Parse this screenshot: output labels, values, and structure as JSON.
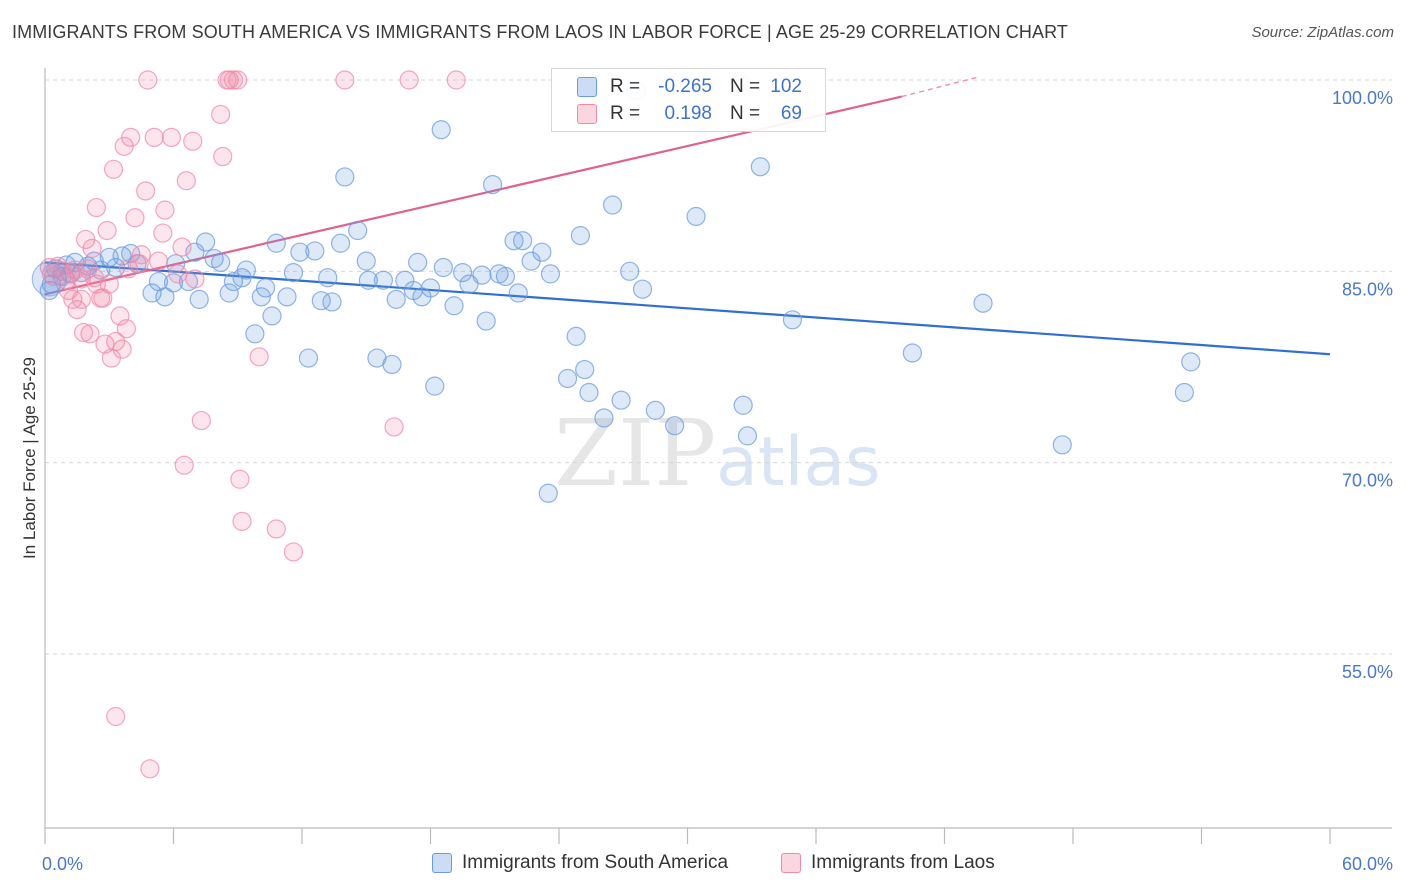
{
  "title": "IMMIGRANTS FROM SOUTH AMERICA VS IMMIGRANTS FROM LAOS IN LABOR FORCE | AGE 25-29 CORRELATION CHART",
  "source": "Source: ZipAtlas.com",
  "watermark": {
    "zip": "ZIP",
    "atlas": "atlas"
  },
  "stats": [
    {
      "r_label": "R =",
      "r": "-0.265",
      "n_label": "N =",
      "n": "102",
      "color": "#6b9be0"
    },
    {
      "r_label": "R =",
      "r": "0.198",
      "n_label": "N =",
      "n": "69",
      "color": "#f08aa8"
    }
  ],
  "legend": [
    {
      "label": "Immigrants from South America",
      "color": "#6b9be0"
    },
    {
      "label": "Immigrants from Laos",
      "color": "#f08aa8"
    }
  ],
  "chart_data": {
    "type": "scatter",
    "ylabel": "In Labor Force | Age 25-29",
    "xlim": [
      0,
      60
    ],
    "ylim": [
      40,
      100
    ],
    "y_ticks": [
      {
        "value": 55,
        "label": "55.0%"
      },
      {
        "value": 70,
        "label": "70.0%"
      },
      {
        "value": 85,
        "label": "85.0%"
      },
      {
        "value": 100,
        "label": "100.0%"
      }
    ],
    "x_tick_labels": {
      "min": "0.0%",
      "max": "60.0%"
    },
    "grid": true,
    "series": [
      {
        "name": "Immigrants from South America",
        "color": "#6b9be0",
        "trend": {
          "x0": 0,
          "y0": 85.7,
          "x1": 60,
          "y1": 78.5
        },
        "points": [
          [
            0.2,
            83.5
          ],
          [
            0.5,
            85.2
          ],
          [
            0.8,
            84.6
          ],
          [
            1.0,
            85.5
          ],
          [
            1.2,
            84.8
          ],
          [
            1.4,
            85.7
          ],
          [
            1.7,
            84.9
          ],
          [
            2.0,
            85.4
          ],
          [
            2.3,
            85.8
          ],
          [
            2.6,
            85.1
          ],
          [
            3.0,
            86.1
          ],
          [
            3.3,
            85.3
          ],
          [
            3.6,
            86.2
          ],
          [
            4.0,
            86.4
          ],
          [
            4.3,
            85.6
          ],
          [
            5.0,
            83.3
          ],
          [
            5.3,
            84.2
          ],
          [
            5.6,
            83.0
          ],
          [
            6.0,
            84.1
          ],
          [
            6.1,
            85.6
          ],
          [
            6.7,
            84.2
          ],
          [
            7.0,
            86.5
          ],
          [
            7.2,
            82.8
          ],
          [
            7.5,
            87.3
          ],
          [
            7.9,
            86.0
          ],
          [
            8.2,
            85.7
          ],
          [
            8.6,
            83.3
          ],
          [
            8.8,
            84.2
          ],
          [
            9.2,
            84.5
          ],
          [
            9.4,
            85.1
          ],
          [
            9.8,
            80.1
          ],
          [
            10.1,
            83.0
          ],
          [
            10.3,
            83.7
          ],
          [
            10.6,
            81.5
          ],
          [
            10.8,
            87.2
          ],
          [
            11.3,
            83.0
          ],
          [
            11.6,
            84.9
          ],
          [
            11.9,
            86.5
          ],
          [
            12.3,
            78.2
          ],
          [
            12.6,
            86.6
          ],
          [
            12.9,
            82.7
          ],
          [
            13.2,
            84.5
          ],
          [
            13.4,
            82.6
          ],
          [
            13.8,
            87.2
          ],
          [
            14.0,
            92.4
          ],
          [
            14.6,
            88.2
          ],
          [
            15.0,
            85.8
          ],
          [
            15.1,
            84.3
          ],
          [
            15.5,
            78.2
          ],
          [
            15.8,
            84.3
          ],
          [
            16.2,
            77.7
          ],
          [
            16.4,
            82.8
          ],
          [
            16.8,
            84.3
          ],
          [
            17.2,
            83.5
          ],
          [
            17.4,
            85.7
          ],
          [
            17.6,
            83.0
          ],
          [
            18.0,
            83.7
          ],
          [
            18.2,
            76.0
          ],
          [
            18.5,
            96.1
          ],
          [
            18.6,
            85.3
          ],
          [
            19.1,
            82.3
          ],
          [
            19.5,
            84.9
          ],
          [
            19.8,
            84.0
          ],
          [
            20.4,
            84.7
          ],
          [
            20.6,
            81.1
          ],
          [
            20.9,
            91.8
          ],
          [
            21.2,
            84.8
          ],
          [
            21.5,
            84.6
          ],
          [
            21.9,
            87.4
          ],
          [
            22.1,
            83.3
          ],
          [
            22.3,
            87.4
          ],
          [
            22.7,
            85.8
          ],
          [
            23.2,
            86.5
          ],
          [
            23.5,
            67.6
          ],
          [
            23.6,
            84.8
          ],
          [
            24.4,
            76.6
          ],
          [
            24.8,
            79.9
          ],
          [
            25.0,
            87.8
          ],
          [
            25.2,
            77.3
          ],
          [
            25.4,
            75.5
          ],
          [
            26.1,
            73.5
          ],
          [
            26.5,
            90.2
          ],
          [
            26.9,
            74.9
          ],
          [
            27.3,
            85.0
          ],
          [
            27.6,
            99.2
          ],
          [
            27.9,
            83.6
          ],
          [
            28.5,
            74.1
          ],
          [
            29.4,
            72.9
          ],
          [
            30.4,
            89.3
          ],
          [
            32.4,
            99.9
          ],
          [
            32.6,
            74.5
          ],
          [
            32.8,
            72.1
          ],
          [
            33.4,
            93.2
          ],
          [
            34.9,
            81.2
          ],
          [
            40.5,
            78.6
          ],
          [
            43.8,
            82.5
          ],
          [
            47.5,
            71.4
          ],
          [
            53.2,
            75.5
          ],
          [
            53.5,
            77.9
          ],
          [
            0.3,
            84.0
          ]
        ]
      },
      {
        "name": "Immigrants from Laos",
        "color": "#f08aa8",
        "trend": {
          "x0": 0,
          "y0": 83.2,
          "x1": 40,
          "y1": 98.7,
          "dash_to_x": 43.5,
          "dash_to_y": 100.2
        },
        "points": [
          [
            0.2,
            85.3
          ],
          [
            0.4,
            84.6
          ],
          [
            0.6,
            85.4
          ],
          [
            0.8,
            85.0
          ],
          [
            1.0,
            84.3
          ],
          [
            1.1,
            83.5
          ],
          [
            1.2,
            84.9
          ],
          [
            1.3,
            82.8
          ],
          [
            1.4,
            85.1
          ],
          [
            1.5,
            82.0
          ],
          [
            1.7,
            82.8
          ],
          [
            1.7,
            84.4
          ],
          [
            1.8,
            80.2
          ],
          [
            1.9,
            87.5
          ],
          [
            2.0,
            85.2
          ],
          [
            2.1,
            80.1
          ],
          [
            2.2,
            86.8
          ],
          [
            2.3,
            84.5
          ],
          [
            2.4,
            84.0
          ],
          [
            2.4,
            90.0
          ],
          [
            2.6,
            82.9
          ],
          [
            2.7,
            82.9
          ],
          [
            2.8,
            79.3
          ],
          [
            2.9,
            88.2
          ],
          [
            3.0,
            84.0
          ],
          [
            3.1,
            78.2
          ],
          [
            3.2,
            93.0
          ],
          [
            3.3,
            79.5
          ],
          [
            3.5,
            81.5
          ],
          [
            3.6,
            78.9
          ],
          [
            3.7,
            94.8
          ],
          [
            3.8,
            80.5
          ],
          [
            3.9,
            85.2
          ],
          [
            4.0,
            95.5
          ],
          [
            4.2,
            89.2
          ],
          [
            4.4,
            85.6
          ],
          [
            4.5,
            86.3
          ],
          [
            4.7,
            91.3
          ],
          [
            4.8,
            100.0
          ],
          [
            5.1,
            95.5
          ],
          [
            5.3,
            85.8
          ],
          [
            5.5,
            88.0
          ],
          [
            5.6,
            89.8
          ],
          [
            5.9,
            95.5
          ],
          [
            6.2,
            84.8
          ],
          [
            6.4,
            86.9
          ],
          [
            6.5,
            69.8
          ],
          [
            6.6,
            92.1
          ],
          [
            6.9,
            95.2
          ],
          [
            7.0,
            84.4
          ],
          [
            7.3,
            73.3
          ],
          [
            8.2,
            97.3
          ],
          [
            8.3,
            94.0
          ],
          [
            8.5,
            100.0
          ],
          [
            8.6,
            100.0
          ],
          [
            8.8,
            100.0
          ],
          [
            9.0,
            100.0
          ],
          [
            9.1,
            68.7
          ],
          [
            9.2,
            65.4
          ],
          [
            10.0,
            78.3
          ],
          [
            10.8,
            64.8
          ],
          [
            11.6,
            63.0
          ],
          [
            14.0,
            100.0
          ],
          [
            16.3,
            72.8
          ],
          [
            17.0,
            100.0
          ],
          [
            19.2,
            100.0
          ],
          [
            3.3,
            50.1
          ],
          [
            4.9,
            46.0
          ],
          [
            0.3,
            84.8
          ]
        ]
      }
    ]
  }
}
